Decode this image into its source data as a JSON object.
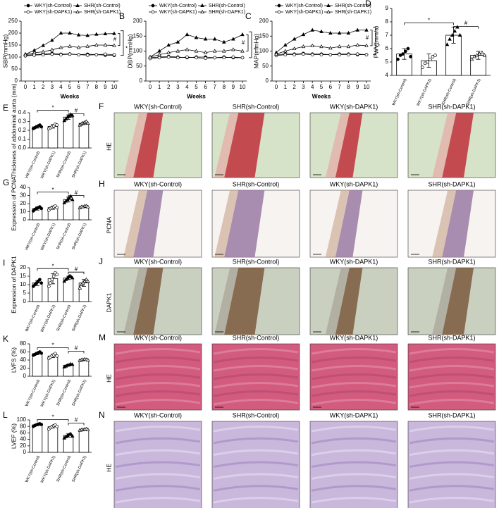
{
  "chart_data": [
    {
      "panel": "A",
      "type": "line",
      "y_label": "SBP(mmHg)",
      "x_label": "Weeks",
      "x": [
        0,
        1,
        2,
        3,
        4,
        5,
        6,
        7,
        8,
        9,
        10
      ],
      "xlim": [
        0,
        10
      ],
      "xticks": [
        0,
        1,
        2,
        3,
        4,
        5,
        6,
        7,
        8,
        9,
        10
      ],
      "ylim": [
        0,
        250
      ],
      "yticks": [
        0,
        50,
        100,
        150,
        200,
        250
      ],
      "annotations": [
        "#",
        "*"
      ],
      "series": [
        {
          "name": "WKY(sh-Control)",
          "marker": "filled-circle",
          "color": "#000000",
          "values": [
            108,
            110,
            112,
            115,
            112,
            113,
            110,
            112,
            110,
            108,
            107
          ]
        },
        {
          "name": "SHR(sh-Control)",
          "marker": "filled-triangle",
          "color": "#000000",
          "values": [
            112,
            128,
            148,
            170,
            200,
            200,
            192,
            190,
            195,
            197,
            198
          ]
        },
        {
          "name": "WKY(sh-DAPK1)",
          "marker": "open-circle",
          "color": "#000000",
          "values": [
            105,
            108,
            110,
            112,
            110,
            112,
            110,
            108,
            110,
            112,
            110
          ]
        },
        {
          "name": "SHR(sh-DAPK1)",
          "marker": "open-triangle",
          "color": "#000000",
          "values": [
            110,
            118,
            122,
            130,
            140,
            145,
            140,
            145,
            150,
            150,
            148
          ]
        }
      ]
    },
    {
      "panel": "B",
      "type": "line",
      "y_label": "DBP(mmHg)",
      "x_label": "Weeks",
      "x": [
        0,
        1,
        2,
        3,
        4,
        5,
        6,
        7,
        8,
        9,
        10
      ],
      "xlim": [
        0,
        10
      ],
      "xticks": [
        0,
        1,
        2,
        3,
        4,
        5,
        6,
        7,
        8,
        9,
        10
      ],
      "ylim": [
        0,
        200
      ],
      "yticks": [
        0,
        50,
        100,
        150,
        200
      ],
      "annotations": [
        "#",
        "*"
      ],
      "series": [
        {
          "name": "WKY(sh-Control)",
          "marker": "filled-circle",
          "color": "#000000",
          "values": [
            78,
            80,
            82,
            80,
            78,
            80,
            80,
            78,
            80,
            78,
            78
          ]
        },
        {
          "name": "SHR(sh-Control)",
          "marker": "filled-triangle",
          "color": "#000000",
          "values": [
            80,
            100,
            120,
            130,
            155,
            145,
            140,
            140,
            130,
            140,
            155
          ]
        },
        {
          "name": "WKY(sh-DAPK1)",
          "marker": "open-circle",
          "color": "#000000",
          "values": [
            75,
            78,
            80,
            78,
            80,
            78,
            76,
            78,
            78,
            80,
            78
          ]
        },
        {
          "name": "SHR(sh-DAPK1)",
          "marker": "open-triangle",
          "color": "#000000",
          "values": [
            80,
            88,
            95,
            100,
            105,
            100,
            95,
            100,
            100,
            105,
            100
          ]
        }
      ]
    },
    {
      "panel": "C",
      "type": "line",
      "y_label": "MAP(mmHg)",
      "x_label": "Weeks",
      "x": [
        0,
        1,
        2,
        3,
        4,
        5,
        6,
        7,
        8,
        9,
        10
      ],
      "xlim": [
        0,
        10
      ],
      "xticks": [
        0,
        1,
        2,
        3,
        4,
        5,
        6,
        7,
        8,
        9,
        10
      ],
      "ylim": [
        0,
        200
      ],
      "yticks": [
        0,
        50,
        100,
        150,
        200
      ],
      "annotations": [
        "#",
        "*"
      ],
      "series": [
        {
          "name": "WKY(sh-Control)",
          "marker": "filled-circle",
          "color": "#000000",
          "values": [
            88,
            90,
            90,
            92,
            90,
            90,
            88,
            90,
            90,
            88,
            88
          ]
        },
        {
          "name": "SHR(sh-Control)",
          "marker": "filled-triangle",
          "color": "#000000",
          "values": [
            95,
            120,
            140,
            155,
            170,
            165,
            160,
            160,
            160,
            170,
            170
          ]
        },
        {
          "name": "WKY(sh-DAPK1)",
          "marker": "open-circle",
          "color": "#000000",
          "values": [
            85,
            88,
            88,
            90,
            88,
            88,
            88,
            88,
            88,
            90,
            88
          ]
        },
        {
          "name": "SHR(sh-DAPK1)",
          "marker": "open-triangle",
          "color": "#000000",
          "values": [
            90,
            100,
            108,
            115,
            118,
            115,
            110,
            115,
            115,
            120,
            118
          ]
        }
      ]
    },
    {
      "panel": "D",
      "type": "bar",
      "y_label": "PWV(mm/s)",
      "ylim": [
        4,
        9
      ],
      "yticks": [
        4,
        5,
        6,
        7,
        8,
        9
      ],
      "annotations": [
        "*",
        "#"
      ],
      "categories": [
        "WKY(sh-Control)",
        "WKY(sh-DAPK1)",
        "SHR(sh-Control)",
        "SHR(sh-DAPK1)"
      ],
      "values": [
        5.6,
        5.1,
        7.0,
        5.5
      ],
      "errors": [
        0.4,
        0.5,
        0.6,
        0.3
      ],
      "points": [
        [
          5.2,
          5.5,
          5.6,
          5.8,
          6.0,
          5.4
        ],
        [
          4.6,
          4.9,
          5.0,
          5.2,
          5.4,
          5.5
        ],
        [
          6.3,
          6.7,
          7.0,
          7.3,
          7.6,
          7.0
        ],
        [
          5.2,
          5.4,
          5.5,
          5.6,
          5.7,
          5.5
        ]
      ]
    },
    {
      "panel": "E",
      "type": "bar",
      "y_label": "Thickness of abdominal aorta (mm)",
      "ylim": [
        0,
        0.4
      ],
      "yticks": [
        {
          "value": 0,
          "label": "0.0"
        },
        0.1,
        0.2,
        0.3,
        0.4
      ],
      "annotations": [
        "*",
        "#"
      ],
      "categories": [
        "WKY(sh-Control)",
        "WKY(sh-DAPK1)",
        "SHR(sh-Control)",
        "SHR(sh-DAPK1)"
      ],
      "values": [
        0.24,
        0.245,
        0.35,
        0.28
      ],
      "errors": [
        0.015,
        0.02,
        0.025,
        0.015
      ],
      "points": [
        [
          0.22,
          0.23,
          0.24,
          0.25,
          0.26,
          0.24
        ],
        [
          0.22,
          0.23,
          0.24,
          0.25,
          0.27,
          0.26
        ],
        [
          0.31,
          0.33,
          0.35,
          0.36,
          0.38,
          0.37
        ],
        [
          0.26,
          0.27,
          0.28,
          0.29,
          0.3,
          0.28
        ]
      ]
    },
    {
      "panel": "G",
      "type": "bar",
      "y_label": "Expression of PCNA",
      "ylim": [
        0,
        40
      ],
      "yticks": [
        0,
        10,
        20,
        30,
        40
      ],
      "annotations": [
        "*",
        "#"
      ],
      "categories": [
        "WKY(sh-Control)",
        "WKY(sh-DAPK1)",
        "SHR(sh-Control)",
        "SHR(sh-DAPK1)"
      ],
      "values": [
        14,
        15,
        25,
        16
      ],
      "errors": [
        2,
        2,
        3,
        1
      ],
      "points": [
        [
          11,
          13,
          14,
          15,
          16,
          14
        ],
        [
          12,
          14,
          15,
          16,
          17,
          15
        ],
        [
          21,
          23,
          25,
          27,
          29,
          25
        ],
        [
          15,
          16,
          16,
          17,
          17,
          16
        ]
      ]
    },
    {
      "panel": "I",
      "type": "bar",
      "y_label": "Expression of DAPK1",
      "ylim": [
        0,
        20
      ],
      "yticks": [
        0,
        5,
        10,
        15,
        20
      ],
      "annotations": [
        "*",
        "#"
      ],
      "categories": [
        "WKY(sh-Control)",
        "WKY(sh-DAPK1)",
        "SHR(sh-Control)",
        "SHR(sh-DAPK1)"
      ],
      "values": [
        11,
        13.5,
        14,
        11
      ],
      "errors": [
        1.5,
        3,
        1,
        2
      ],
      "points": [
        [
          9,
          10,
          11,
          12,
          13,
          11
        ],
        [
          9,
          11,
          13,
          15,
          17,
          16
        ],
        [
          12,
          13,
          14,
          15,
          15,
          14
        ],
        [
          8,
          10,
          11,
          12,
          13,
          12
        ]
      ]
    },
    {
      "panel": "K",
      "type": "bar",
      "y_label": "LVFS (%)",
      "ylim": [
        0,
        80
      ],
      "yticks": [
        0,
        20,
        40,
        60,
        80
      ],
      "annotations": [
        "*",
        "#"
      ],
      "categories": [
        "WKY(sh-Control)",
        "WKY(sh-DAPK1)",
        "SHR(sh-Control)",
        "SHR(sh-DAPK1)"
      ],
      "values": [
        56,
        50,
        27,
        41
      ],
      "errors": [
        3,
        4,
        2,
        1
      ],
      "points": [
        [
          52,
          54,
          56,
          58,
          60,
          57
        ],
        [
          44,
          47,
          50,
          53,
          56,
          50
        ],
        [
          23,
          25,
          27,
          28,
          30,
          29
        ],
        [
          39,
          40,
          41,
          42,
          41,
          40
        ]
      ]
    },
    {
      "panel": "L",
      "type": "bar",
      "y_label": "LVEF (%)",
      "ylim": [
        0,
        100
      ],
      "yticks": [
        0,
        20,
        40,
        60,
        80,
        100
      ],
      "annotations": [
        "*",
        "#"
      ],
      "categories": [
        "WKY(sh-Control)",
        "WKY(sh-DAPK1)",
        "SHR(sh-Control)",
        "SHR(sh-DAPK1)"
      ],
      "values": [
        85,
        79,
        52,
        70
      ],
      "errors": [
        3,
        4,
        5,
        2
      ],
      "points": [
        [
          80,
          83,
          85,
          87,
          88,
          86
        ],
        [
          72,
          76,
          79,
          82,
          84,
          80
        ],
        [
          44,
          48,
          52,
          55,
          57,
          50
        ],
        [
          68,
          69,
          70,
          71,
          72,
          70
        ]
      ]
    }
  ],
  "image_panels": [
    {
      "panel": "F",
      "stain": "HE",
      "titles": [
        "WKY(sh-Control)",
        "SHR(sh-Control)",
        "WKY(sh-DAPK1)",
        "SHR(sh-DAPK1)"
      ]
    },
    {
      "panel": "H",
      "stain": "PCNA",
      "titles": [
        "WKY(sh-Control)",
        "SHR(sh-Control)",
        "WKY(sh-DAPK1)",
        "SHR(sh-DAPK1)"
      ]
    },
    {
      "panel": "J",
      "stain": "DAPK1",
      "titles": [
        "WKY(sh-Control)",
        "SHR(sh-Control)",
        "WKY(sh-DAPK1)",
        "SHR(sh-DAPK1)"
      ]
    },
    {
      "panel": "M",
      "stain": "HE",
      "titles": [
        "WKY(sh-Control)",
        "SHR(sh-Control)",
        "WKY(sh-DAPK1)",
        "SHR(sh-DAPK1)"
      ]
    },
    {
      "panel": "N",
      "stain": "HE",
      "titles": [
        "WKY(sh-Control)",
        "SHR(sh-Control)",
        "WKY(sh-DAPK1)",
        "SHR(sh-DAPK1)"
      ]
    }
  ]
}
